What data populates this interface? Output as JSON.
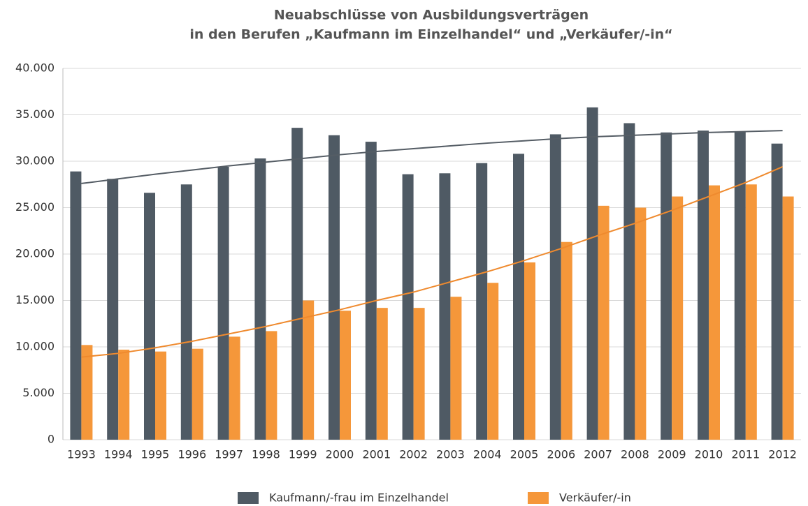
{
  "chart_data": {
    "type": "bar",
    "title": [
      "Neuabschlüsse von Ausbildungsverträgen",
      "in den Berufen „Kaufmann im Einzelhandel“ und „Verkäufer/-in“"
    ],
    "categories": [
      "1993",
      "1994",
      "1995",
      "1996",
      "1997",
      "1998",
      "1999",
      "2000",
      "2001",
      "2002",
      "2003",
      "2004",
      "2005",
      "2006",
      "2007",
      "2008",
      "2009",
      "2010",
      "2011",
      "2012"
    ],
    "series": [
      {
        "name": "Kaufmann/-frau im Einzelhandel",
        "color": "#4f5a64",
        "trend_color": "#555d65",
        "values": [
          28900,
          28100,
          26600,
          27500,
          29400,
          30300,
          33600,
          32800,
          32100,
          28600,
          28700,
          29800,
          30800,
          32900,
          35800,
          34100,
          33100,
          33300,
          33200,
          31900
        ],
        "trend": [
          27600,
          28100,
          28600,
          29050,
          29500,
          29900,
          30300,
          30700,
          31050,
          31350,
          31650,
          31950,
          32200,
          32450,
          32650,
          32800,
          32950,
          33100,
          33200,
          33300
        ]
      },
      {
        "name": "Verkäufer/-in",
        "color": "#f5973a",
        "trend_color": "#ef8a2e",
        "values": [
          10200,
          9700,
          9500,
          9800,
          11100,
          11700,
          15000,
          13900,
          14200,
          14200,
          15400,
          16900,
          19100,
          21300,
          25200,
          25000,
          26200,
          27400,
          27500,
          26200
        ],
        "trend": [
          8900,
          9300,
          9900,
          10600,
          11400,
          12200,
          13100,
          14000,
          15000,
          15900,
          17000,
          18100,
          19300,
          20600,
          22000,
          23300,
          24700,
          26200,
          27700,
          29400
        ]
      }
    ],
    "ylim": [
      0,
      40000
    ],
    "yticks": [
      0,
      {
        "value": 5000,
        "label": "5.000"
      },
      {
        "value": 10000,
        "label": "10.000"
      },
      {
        "value": 15000,
        "label": "15.000"
      },
      {
        "value": 20000,
        "label": "20.000"
      },
      {
        "value": 25000,
        "label": "25.000"
      },
      {
        "value": 30000,
        "label": "30.000"
      },
      {
        "value": 35000,
        "label": "35.000"
      },
      {
        "value": 40000,
        "label": "40.000"
      }
    ],
    "grid": true,
    "legend": "bottom"
  }
}
